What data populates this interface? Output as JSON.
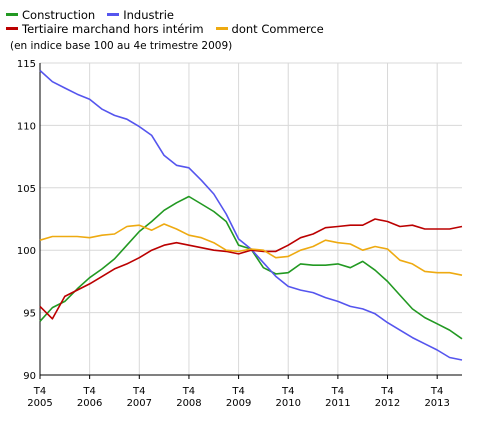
{
  "subtitle": "(en indice base 100 au 4e trimestre 2009)",
  "chart_data": {
    "type": "line",
    "title": "",
    "xlabel": "",
    "ylabel": "",
    "ylim": [
      90,
      115
    ],
    "y_ticks": [
      90,
      95,
      100,
      105,
      110,
      115
    ],
    "grid": true,
    "legend_position": "top-left",
    "x_tick_labels": [
      [
        "T4",
        "2005"
      ],
      [
        "T4",
        "2006"
      ],
      [
        "T4",
        "2007"
      ],
      [
        "T4",
        "2008"
      ],
      [
        "T4",
        "2009"
      ],
      [
        "T4",
        "2010"
      ],
      [
        "T4",
        "2011"
      ],
      [
        "T4",
        "2012"
      ],
      [
        "T4",
        "2013"
      ]
    ],
    "x": [
      2005.75,
      2006.0,
      2006.25,
      2006.5,
      2006.75,
      2007.0,
      2007.25,
      2007.5,
      2007.75,
      2008.0,
      2008.25,
      2008.5,
      2008.75,
      2009.0,
      2009.25,
      2009.5,
      2009.75,
      2010.0,
      2010.25,
      2010.5,
      2010.75,
      2011.0,
      2011.25,
      2011.5,
      2011.75,
      2012.0,
      2012.25,
      2012.5,
      2012.75,
      2013.0,
      2013.25,
      2013.5,
      2013.75,
      2014.0,
      2014.25
    ],
    "series": [
      {
        "name": "Construction",
        "color": "#229922",
        "values": [
          94.3,
          95.4,
          95.9,
          96.9,
          97.8,
          98.5,
          99.3,
          100.4,
          101.5,
          102.3,
          103.2,
          103.8,
          104.3,
          103.7,
          103.1,
          102.3,
          100.4,
          100.1,
          98.6,
          98.1,
          98.2,
          98.9,
          98.8,
          98.8,
          98.9,
          98.6,
          99.1,
          98.4,
          97.5,
          96.4,
          95.3,
          94.6,
          94.1,
          93.6,
          92.9
        ]
      },
      {
        "name": "Industrie",
        "color": "#5555ee",
        "values": [
          114.4,
          113.5,
          113.0,
          112.5,
          112.1,
          111.3,
          110.8,
          110.5,
          109.9,
          109.2,
          107.6,
          106.8,
          106.6,
          105.6,
          104.5,
          102.9,
          100.9,
          100.1,
          99.0,
          97.9,
          97.1,
          96.8,
          96.6,
          96.2,
          95.9,
          95.5,
          95.3,
          94.9,
          94.2,
          93.6,
          93.0,
          92.5,
          92.0,
          91.4,
          91.2
        ]
      },
      {
        "name": "Tertiaire marchand hors intérim",
        "color": "#bb0000",
        "values": [
          95.5,
          94.5,
          96.3,
          96.8,
          97.3,
          97.9,
          98.5,
          98.9,
          99.4,
          100.0,
          100.4,
          100.6,
          100.4,
          100.2,
          100.0,
          99.9,
          99.7,
          100.0,
          99.9,
          99.9,
          100.4,
          101.0,
          101.3,
          101.8,
          101.9,
          102.0,
          102.0,
          102.5,
          102.3,
          101.9,
          102.0,
          101.7,
          101.7,
          101.7,
          101.9
        ]
      },
      {
        "name": "dont Commerce",
        "color": "#eeaa11",
        "values": [
          100.8,
          101.1,
          101.1,
          101.1,
          101.0,
          101.2,
          101.3,
          101.9,
          102.0,
          101.6,
          102.1,
          101.7,
          101.2,
          101.0,
          100.6,
          100.0,
          99.9,
          100.1,
          100.0,
          99.4,
          99.5,
          100.0,
          100.3,
          100.8,
          100.6,
          100.5,
          100.0,
          100.3,
          100.1,
          99.2,
          98.9,
          98.3,
          98.2,
          98.2,
          98.0
        ]
      }
    ]
  }
}
